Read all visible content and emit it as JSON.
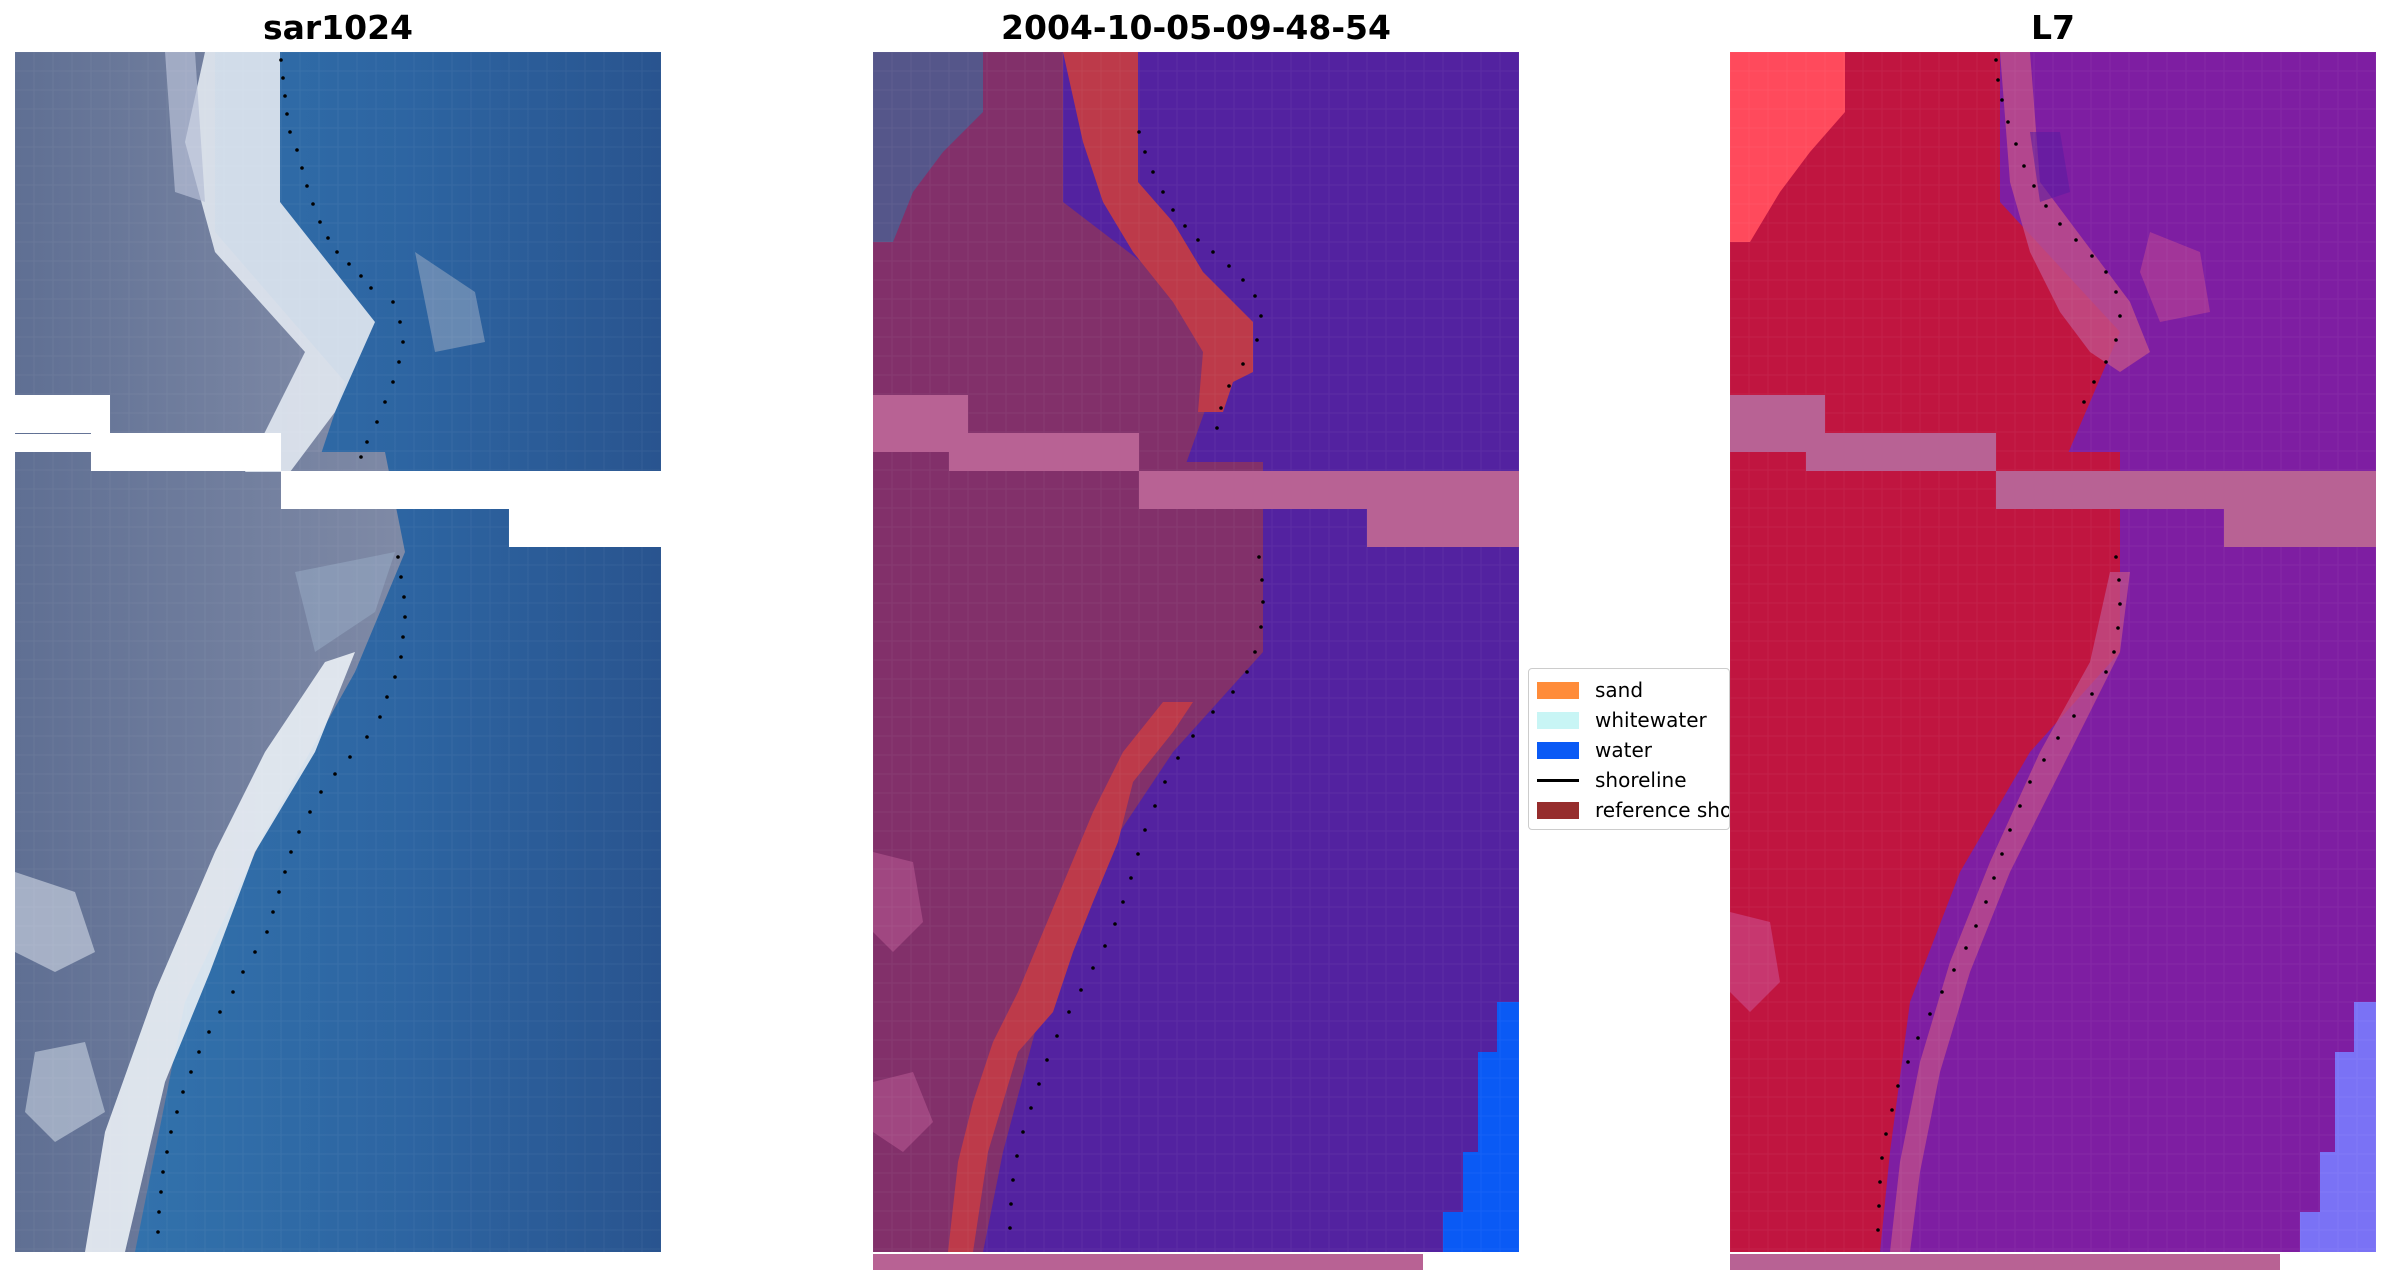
{
  "panels": [
    {
      "title": "sar1024",
      "style": "rgb true-colour satellite image with shoreline dots"
    },
    {
      "title": "2004-10-05-09-48-54",
      "style": "classification overlay"
    },
    {
      "title": "L7",
      "style": "false-colour index image"
    }
  ],
  "legend": {
    "items": [
      {
        "label": "sand",
        "color": "#ff8c3a",
        "kind": "patch"
      },
      {
        "label": "whitewater",
        "color": "#c8f5f5",
        "kind": "patch"
      },
      {
        "label": "water",
        "color": "#0a5af5",
        "kind": "patch"
      },
      {
        "label": "shoreline",
        "color": "#000000",
        "kind": "line"
      },
      {
        "label": "reference shoreline",
        "color": "#962d2d",
        "kind": "patch"
      }
    ]
  },
  "colors": {
    "ocean": "#2e6aa5",
    "land_rgb": "#6f7d9c",
    "surf": "#e6edf3",
    "class_land": "#82306a",
    "class_sand": "#bd3a4a",
    "class_water": "#5322a0",
    "nodata_band": "#b86294",
    "bright_water": "#0a5af5",
    "index_land": "#c01540",
    "index_water": "#7e1ea2",
    "index_light_water": "#7a72f5"
  }
}
